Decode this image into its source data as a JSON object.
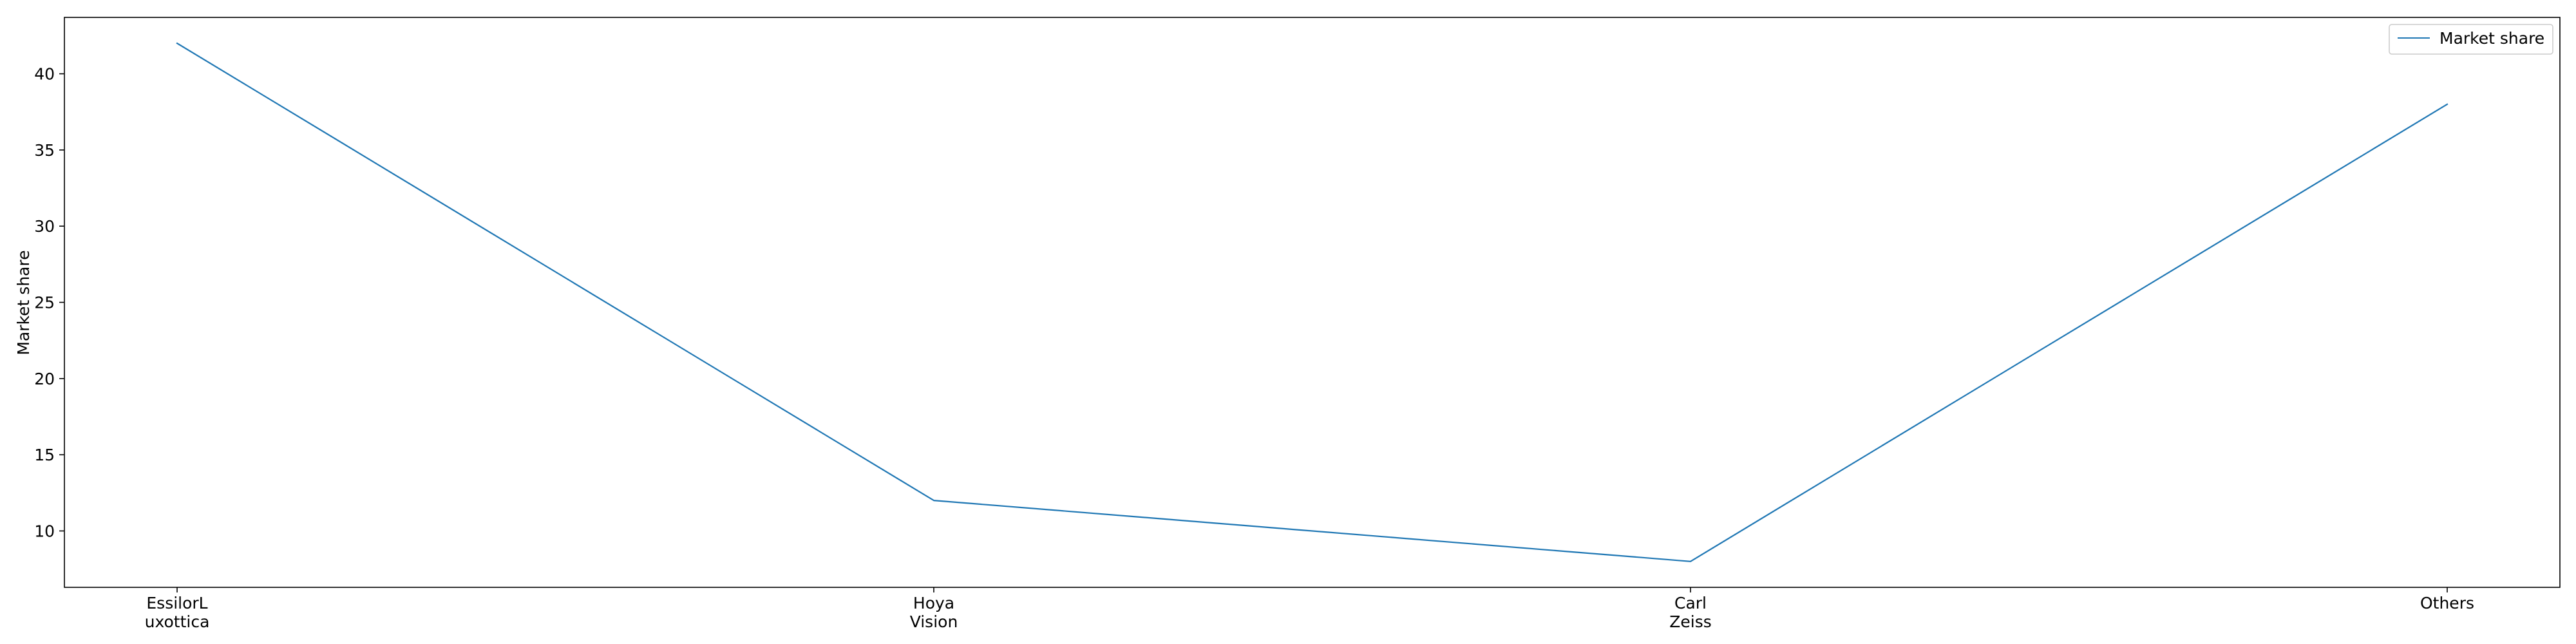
{
  "chart_data": {
    "type": "line",
    "categories": [
      "EssilorL\nuxottica",
      "Hoya\nVision",
      "Carl\nZeiss",
      "Others"
    ],
    "series": [
      {
        "name": "Market share",
        "values": [
          42,
          12,
          8,
          38
        ],
        "color": "#1f77b4"
      }
    ],
    "title": "",
    "xlabel": "",
    "ylabel": "Market share",
    "ylim": [
      6.3,
      43.7
    ],
    "yticks": [
      10,
      15,
      20,
      25,
      30,
      35,
      40
    ],
    "grid": false,
    "legend_position": "top-right"
  }
}
